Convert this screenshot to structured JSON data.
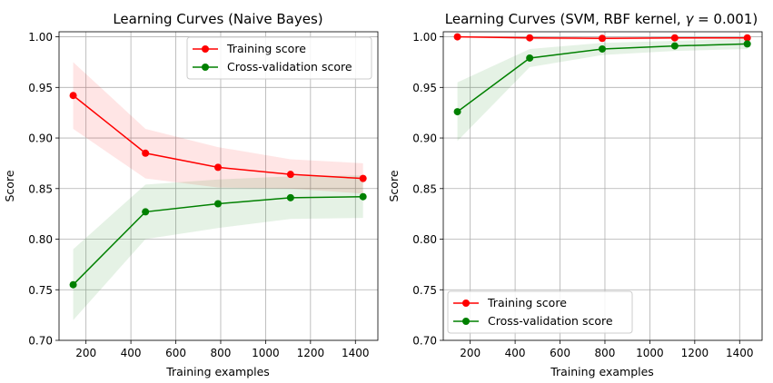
{
  "chart_data": [
    {
      "type": "line",
      "title": "Learning Curves (Naive Bayes)",
      "xlabel": "Training examples",
      "ylabel": "Score",
      "xlim": [
        80,
        1500
      ],
      "ylim": [
        0.7,
        1.005
      ],
      "xticks": [
        200,
        400,
        600,
        800,
        1000,
        1200,
        1400
      ],
      "yticks": [
        0.7,
        0.75,
        0.8,
        0.85,
        0.9,
        0.95,
        1.0
      ],
      "xtick_labels": [
        "200",
        "400",
        "600",
        "800",
        "1000",
        "1200",
        "1400"
      ],
      "ytick_labels": [
        "0.70",
        "0.75",
        "0.80",
        "0.85",
        "0.90",
        "0.95",
        "1.00"
      ],
      "grid": true,
      "legend_position": "upper-right",
      "x": [
        143,
        465,
        788,
        1111,
        1434
      ],
      "series": [
        {
          "name": "Training score",
          "color": "#ff0000",
          "fill_color": "#ff0000",
          "values": [
            0.942,
            0.885,
            0.871,
            0.864,
            0.86
          ],
          "lower": [
            0.909,
            0.86,
            0.851,
            0.85,
            0.845
          ],
          "upper": [
            0.975,
            0.909,
            0.891,
            0.879,
            0.875
          ]
        },
        {
          "name": "Cross-validation score",
          "color": "#008000",
          "fill_color": "#008000",
          "values": [
            0.755,
            0.827,
            0.835,
            0.841,
            0.842
          ],
          "lower": [
            0.72,
            0.8,
            0.811,
            0.82,
            0.821
          ],
          "upper": [
            0.79,
            0.854,
            0.859,
            0.862,
            0.863
          ]
        }
      ]
    },
    {
      "type": "line",
      "title": "Learning Curves (SVM, RBF kernel, γ = 0.001)",
      "title_prefix": "Learning Curves (SVM, RBF kernel, ",
      "title_gamma": "γ",
      "title_suffix": " = 0.001)",
      "xlabel": "Training examples",
      "ylabel": "Score",
      "xlim": [
        80,
        1500
      ],
      "ylim": [
        0.7,
        1.005
      ],
      "xticks": [
        200,
        400,
        600,
        800,
        1000,
        1200,
        1400
      ],
      "yticks": [
        0.7,
        0.75,
        0.8,
        0.85,
        0.9,
        0.95,
        1.0
      ],
      "xtick_labels": [
        "200",
        "400",
        "600",
        "800",
        "1000",
        "1200",
        "1400"
      ],
      "ytick_labels": [
        "0.70",
        "0.75",
        "0.80",
        "0.85",
        "0.90",
        "0.95",
        "1.00"
      ],
      "grid": true,
      "legend_position": "lower-left",
      "x": [
        143,
        465,
        788,
        1111,
        1434
      ],
      "series": [
        {
          "name": "Training score",
          "color": "#ff0000",
          "fill_color": "#ff0000",
          "values": [
            1.0,
            0.999,
            0.9985,
            0.999,
            0.999
          ],
          "lower": [
            0.9995,
            0.9975,
            0.997,
            0.998,
            0.998
          ],
          "upper": [
            1.0005,
            1.0005,
            1.0,
            1.0,
            1.0
          ]
        },
        {
          "name": "Cross-validation score",
          "color": "#008000",
          "fill_color": "#008000",
          "values": [
            0.926,
            0.979,
            0.988,
            0.991,
            0.993
          ],
          "lower": [
            0.897,
            0.97,
            0.982,
            0.986,
            0.988
          ],
          "upper": [
            0.955,
            0.988,
            0.994,
            0.996,
            0.998
          ]
        }
      ]
    }
  ]
}
